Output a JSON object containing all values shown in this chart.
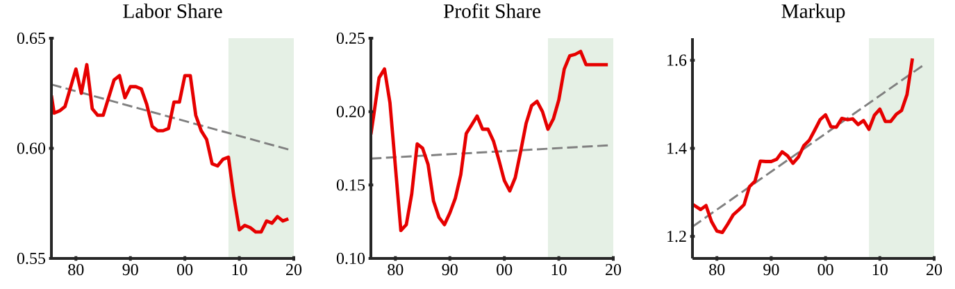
{
  "chart_data": [
    {
      "type": "line",
      "title": "Labor Share",
      "xlim": [
        1975.5,
        2020
      ],
      "xticks": [
        {
          "value": 1980,
          "label": "80"
        },
        {
          "value": 1990,
          "label": "90"
        },
        {
          "value": 2000,
          "label": "00"
        },
        {
          "value": 2010,
          "label": "10"
        },
        {
          "value": 2020,
          "label": "20"
        }
      ],
      "ylim": [
        0.55,
        0.65
      ],
      "yticks": [
        0.55,
        {
          "value": 0.6,
          "label": "0.60"
        },
        0.65
      ],
      "bands": [
        {
          "axis": "x",
          "from": 2008,
          "to": 2020,
          "color": "#e5f0e5"
        }
      ],
      "series": [
        {
          "color": "#808080",
          "line_style": "dashed",
          "x": [
            1975.5,
            2019
          ],
          "values": [
            0.629,
            0.5995
          ]
        },
        {
          "color": "#e60000",
          "line_style": "solid",
          "x": [
            1975.5,
            1976,
            1977,
            1978,
            1980,
            1981,
            1982,
            1983,
            1984,
            1985,
            1987,
            1988,
            1989,
            1990,
            1991,
            1992,
            1993,
            1994,
            1995,
            1996,
            1997,
            1998,
            1999,
            2000,
            2001,
            2002,
            2003,
            2004,
            2005,
            2006,
            2007,
            2008,
            2009,
            2010,
            2011,
            2012,
            2013,
            2014,
            2015,
            2016,
            2017,
            2018,
            2019
          ],
          "values": [
            0.624,
            0.616,
            0.617,
            0.619,
            0.636,
            0.625,
            0.638,
            0.618,
            0.615,
            0.615,
            0.631,
            0.633,
            0.623,
            0.628,
            0.628,
            0.627,
            0.62,
            0.61,
            0.608,
            0.608,
            0.609,
            0.621,
            0.621,
            0.633,
            0.633,
            0.615,
            0.608,
            0.604,
            0.593,
            0.592,
            0.595,
            0.596,
            0.578,
            0.563,
            0.565,
            0.564,
            0.562,
            0.562,
            0.567,
            0.566,
            0.569,
            0.567,
            0.568
          ]
        }
      ]
    },
    {
      "type": "line",
      "title": "Profit Share",
      "xlim": [
        1975.5,
        2020
      ],
      "xticks": [
        {
          "value": 1980,
          "label": "80"
        },
        {
          "value": 1990,
          "label": "90"
        },
        {
          "value": 2000,
          "label": "00"
        },
        {
          "value": 2010,
          "label": "10"
        },
        {
          "value": 2020,
          "label": "20"
        }
      ],
      "ylim": [
        0.1,
        0.25
      ],
      "yticks": [
        {
          "value": 0.1,
          "label": "0.10"
        },
        0.15,
        {
          "value": 0.2,
          "label": "0.20"
        },
        0.25
      ],
      "bands": [
        {
          "axis": "x",
          "from": 2008,
          "to": 2020,
          "color": "#e5f0e5"
        }
      ],
      "series": [
        {
          "color": "#808080",
          "line_style": "dashed",
          "x": [
            1975.5,
            2019
          ],
          "values": [
            0.168,
            0.177
          ]
        },
        {
          "color": "#e60000",
          "line_style": "solid",
          "x": [
            1975.5,
            1976,
            1977,
            1978,
            1979,
            1981,
            1982,
            1983,
            1984,
            1985,
            1986,
            1987,
            1988,
            1989,
            1990,
            1991,
            1992,
            1993,
            1994,
            1995,
            1996,
            1997,
            1998,
            1999,
            2000,
            2001,
            2002,
            2003,
            2004,
            2005,
            2006,
            2007,
            2008,
            2009,
            2010,
            2011,
            2012,
            2013,
            2014,
            2015,
            2016,
            2017,
            2018,
            2019
          ],
          "values": [
            0.1845,
            0.197,
            0.223,
            0.229,
            0.206,
            0.119,
            0.123,
            0.144,
            0.178,
            0.175,
            0.164,
            0.139,
            0.128,
            0.123,
            0.131,
            0.141,
            0.157,
            0.185,
            0.191,
            0.197,
            0.188,
            0.188,
            0.18,
            0.167,
            0.153,
            0.146,
            0.155,
            0.173,
            0.192,
            0.204,
            0.207,
            0.2,
            0.188,
            0.195,
            0.208,
            0.229,
            0.238,
            0.239,
            0.241,
            0.232,
            0.232,
            0.232,
            0.232,
            0.232
          ]
        }
      ]
    },
    {
      "type": "line",
      "title": "Markup",
      "xlim": [
        1975.5,
        2020
      ],
      "xticks": [
        {
          "value": 1980,
          "label": "80"
        },
        {
          "value": 1990,
          "label": "90"
        },
        {
          "value": 2000,
          "label": "00"
        },
        {
          "value": 2010,
          "label": "10"
        },
        {
          "value": 2020,
          "label": "20"
        }
      ],
      "ylim": [
        1.15,
        1.65
      ],
      "yticks": [
        1.2,
        1.4,
        1.6
      ],
      "bands": [
        {
          "axis": "x",
          "from": 2008,
          "to": 2020,
          "color": "#e5f0e5"
        }
      ],
      "series": [
        {
          "color": "#808080",
          "line_style": "dashed",
          "x": [
            1975.5,
            2017.8
          ],
          "values": [
            1.222,
            1.587
          ]
        },
        {
          "color": "#e60000",
          "line_style": "solid",
          "x": [
            1975.5,
            1977,
            1978,
            1979,
            1980,
            1981,
            1982,
            1983,
            1984,
            1985,
            1986,
            1987,
            1988,
            1989,
            1990,
            1991,
            1992,
            1993,
            1994,
            1995,
            1996,
            1997,
            1998,
            1999,
            2000,
            2001,
            2002,
            2003,
            2004,
            2005,
            2006,
            2007,
            2008,
            2009,
            2010,
            2011,
            2012,
            2013,
            2014,
            2015,
            2016
          ],
          "values": [
            1.273,
            1.261,
            1.27,
            1.234,
            1.212,
            1.209,
            1.228,
            1.249,
            1.26,
            1.272,
            1.313,
            1.325,
            1.371,
            1.37,
            1.37,
            1.375,
            1.392,
            1.383,
            1.366,
            1.38,
            1.406,
            1.418,
            1.441,
            1.465,
            1.476,
            1.449,
            1.448,
            1.468,
            1.465,
            1.467,
            1.454,
            1.463,
            1.443,
            1.475,
            1.489,
            1.461,
            1.461,
            1.477,
            1.486,
            1.522,
            1.604
          ]
        }
      ]
    }
  ]
}
